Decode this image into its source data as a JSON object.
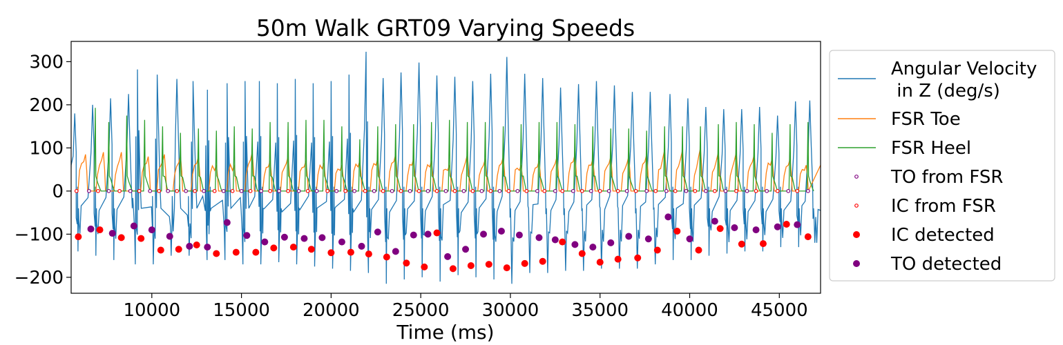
{
  "chart_data": {
    "type": "line",
    "title": "50m Walk GRT09 Varying Speeds",
    "xlabel": "Time (ms)",
    "ylabel": "",
    "xlim": [
      5500,
      47300
    ],
    "ylim": [
      -237,
      347
    ],
    "xticks": [
      10000,
      15000,
      20000,
      25000,
      30000,
      35000,
      40000,
      45000
    ],
    "xtick_labels": [
      "10000",
      "15000",
      "20000",
      "25000",
      "30000",
      "35000",
      "40000",
      "45000"
    ],
    "yticks": [
      300,
      200,
      100,
      0,
      -100,
      -200
    ],
    "ytick_labels": [
      "300",
      "200",
      "100",
      "0",
      "−100",
      "−200"
    ],
    "grid": false,
    "legend_position": "outside-right",
    "colors": {
      "angular_velocity": "#1f77b4",
      "fsr_toe": "#ff7f0e",
      "fsr_heel": "#2ca02c",
      "to": "#800080",
      "ic": "#ff0000"
    },
    "series": [
      {
        "key": "angular_velocity",
        "name": "Angular Velocity\n in Z (deg/s)",
        "kind": "line"
      },
      {
        "key": "fsr_toe",
        "name": "FSR Toe",
        "kind": "line"
      },
      {
        "key": "fsr_heel",
        "name": "FSR Heel",
        "kind": "line"
      },
      {
        "key": "to_fsr",
        "name": "TO from FSR",
        "kind": "hollow-marker"
      },
      {
        "key": "ic_fsr",
        "name": "IC from FSR",
        "kind": "hollow-marker"
      },
      {
        "key": "ic_detected",
        "name": "IC detected",
        "kind": "filled-marker"
      },
      {
        "key": "to_detected",
        "name": "TO detected",
        "kind": "filled-marker"
      }
    ],
    "gyro_peaks": [
      [
        5700,
        180
      ],
      [
        6700,
        200
      ],
      [
        7700,
        215
      ],
      [
        8700,
        225
      ],
      [
        9200,
        282
      ],
      [
        10300,
        270
      ],
      [
        11400,
        260
      ],
      [
        12300,
        255
      ],
      [
        13100,
        235
      ],
      [
        14200,
        250
      ],
      [
        15200,
        255
      ],
      [
        16000,
        255
      ],
      [
        17000,
        250
      ],
      [
        18000,
        260
      ],
      [
        19000,
        250
      ],
      [
        20000,
        255
      ],
      [
        21000,
        270
      ],
      [
        21950,
        323
      ],
      [
        22900,
        262
      ],
      [
        23900,
        275
      ],
      [
        24900,
        298
      ],
      [
        25900,
        268
      ],
      [
        26900,
        265
      ],
      [
        27900,
        255
      ],
      [
        28900,
        272
      ],
      [
        29800,
        311
      ],
      [
        30800,
        272
      ],
      [
        31800,
        262
      ],
      [
        32800,
        240
      ],
      [
        33800,
        248
      ],
      [
        34800,
        255
      ],
      [
        35800,
        245
      ],
      [
        36800,
        230
      ],
      [
        37800,
        230
      ],
      [
        38900,
        225
      ],
      [
        39900,
        215
      ],
      [
        40900,
        195
      ],
      [
        41900,
        190
      ],
      [
        42900,
        190
      ],
      [
        43900,
        195
      ],
      [
        44900,
        175
      ],
      [
        45900,
        208
      ],
      [
        46700,
        210
      ]
    ],
    "gyro_troughs": [
      [
        5900,
        -140
      ],
      [
        6900,
        -150
      ],
      [
        7900,
        -160
      ],
      [
        9100,
        -170
      ],
      [
        10100,
        -170
      ],
      [
        11100,
        -150
      ],
      [
        12100,
        -150
      ],
      [
        13100,
        -160
      ],
      [
        14100,
        -160
      ],
      [
        15100,
        -170
      ],
      [
        16100,
        -170
      ],
      [
        17100,
        -165
      ],
      [
        18100,
        -170
      ],
      [
        19100,
        -175
      ],
      [
        20100,
        -180
      ],
      [
        21100,
        -185
      ],
      [
        22100,
        -190
      ],
      [
        23100,
        -215
      ],
      [
        24100,
        -205
      ],
      [
        25100,
        -200
      ],
      [
        26100,
        -210
      ],
      [
        27100,
        -195
      ],
      [
        28100,
        -200
      ],
      [
        29100,
        -205
      ],
      [
        30100,
        -215
      ],
      [
        31100,
        -190
      ],
      [
        32100,
        -190
      ],
      [
        33100,
        -185
      ],
      [
        34100,
        -185
      ],
      [
        35100,
        -180
      ],
      [
        36100,
        -180
      ],
      [
        37100,
        -180
      ],
      [
        38100,
        -170
      ],
      [
        39100,
        -160
      ],
      [
        40100,
        -160
      ],
      [
        41100,
        -150
      ],
      [
        42100,
        -145
      ],
      [
        43100,
        -140
      ],
      [
        44100,
        -140
      ],
      [
        45100,
        -130
      ],
      [
        46100,
        -130
      ],
      [
        47000,
        -120
      ]
    ],
    "fsr_toe_peaks": [
      [
        6300,
        85
      ],
      [
        7300,
        90
      ],
      [
        8300,
        90
      ],
      [
        9800,
        80
      ],
      [
        10700,
        85
      ],
      [
        11600,
        82
      ],
      [
        12600,
        80
      ],
      [
        13600,
        60
      ],
      [
        14600,
        60
      ],
      [
        15600,
        90
      ],
      [
        16600,
        70
      ],
      [
        17600,
        80
      ],
      [
        18600,
        70
      ],
      [
        19600,
        65
      ],
      [
        20600,
        60
      ],
      [
        21600,
        70
      ],
      [
        22600,
        75
      ],
      [
        23600,
        85
      ],
      [
        24600,
        75
      ],
      [
        25600,
        70
      ],
      [
        26600,
        60
      ],
      [
        27600,
        85
      ],
      [
        28600,
        75
      ],
      [
        29600,
        80
      ],
      [
        30600,
        60
      ],
      [
        31600,
        70
      ],
      [
        32600,
        80
      ],
      [
        33600,
        85
      ],
      [
        34600,
        75
      ],
      [
        35600,
        80
      ],
      [
        36600,
        80
      ],
      [
        37600,
        85
      ],
      [
        38600,
        95
      ],
      [
        39600,
        95
      ],
      [
        40600,
        100
      ],
      [
        41600,
        90
      ],
      [
        42600,
        90
      ],
      [
        43600,
        85
      ],
      [
        44600,
        75
      ],
      [
        45600,
        75
      ],
      [
        46500,
        60
      ]
    ],
    "fsr_heel_peaks": [
      [
        6850,
        193
      ],
      [
        7600,
        160
      ],
      [
        8600,
        175
      ],
      [
        9600,
        165
      ],
      [
        10600,
        150
      ],
      [
        11600,
        135
      ],
      [
        12600,
        145
      ],
      [
        13600,
        140
      ],
      [
        14600,
        150
      ],
      [
        15600,
        145
      ],
      [
        16600,
        160
      ],
      [
        17600,
        160
      ],
      [
        18600,
        165
      ],
      [
        19600,
        165
      ],
      [
        20600,
        150
      ],
      [
        21600,
        120
      ],
      [
        22600,
        150
      ],
      [
        23600,
        155
      ],
      [
        24600,
        155
      ],
      [
        25600,
        160
      ],
      [
        26600,
        165
      ],
      [
        27600,
        160
      ],
      [
        28600,
        160
      ],
      [
        29600,
        150
      ],
      [
        30600,
        155
      ],
      [
        31600,
        160
      ],
      [
        32600,
        160
      ],
      [
        33600,
        155
      ],
      [
        34600,
        150
      ],
      [
        35600,
        145
      ],
      [
        36600,
        145
      ],
      [
        37600,
        140
      ],
      [
        38600,
        150
      ],
      [
        39600,
        150
      ],
      [
        40600,
        150
      ],
      [
        41600,
        155
      ],
      [
        42600,
        160
      ],
      [
        43600,
        155
      ],
      [
        44600,
        135
      ],
      [
        45600,
        155
      ],
      [
        46600,
        160
      ]
    ],
    "ic_detected": [
      [
        5900,
        -106
      ],
      [
        7100,
        -90
      ],
      [
        8300,
        -108
      ],
      [
        9400,
        -110
      ],
      [
        10500,
        -137
      ],
      [
        11500,
        -135
      ],
      [
        12500,
        -125
      ],
      [
        13600,
        -145
      ],
      [
        14700,
        -142
      ],
      [
        15800,
        -142
      ],
      [
        16800,
        -132
      ],
      [
        17900,
        -130
      ],
      [
        18900,
        -135
      ],
      [
        20000,
        -143
      ],
      [
        21100,
        -142
      ],
      [
        22100,
        -146
      ],
      [
        23100,
        -153
      ],
      [
        24200,
        -167
      ],
      [
        25200,
        -176
      ],
      [
        25900,
        -97
      ],
      [
        26800,
        -180
      ],
      [
        27800,
        -173
      ],
      [
        28800,
        -170
      ],
      [
        29800,
        -178
      ],
      [
        30800,
        -168
      ],
      [
        31800,
        -163
      ],
      [
        32900,
        -118
      ],
      [
        34000,
        -145
      ],
      [
        35000,
        -165
      ],
      [
        36000,
        -158
      ],
      [
        37100,
        -155
      ],
      [
        38200,
        -137
      ],
      [
        39300,
        -93
      ],
      [
        40500,
        -137
      ],
      [
        41700,
        -87
      ],
      [
        42900,
        -123
      ],
      [
        44100,
        -122
      ],
      [
        45400,
        -77
      ],
      [
        46600,
        -106
      ]
    ],
    "to_detected": [
      [
        6600,
        -88
      ],
      [
        7800,
        -98
      ],
      [
        9000,
        -81
      ],
      [
        10000,
        -90
      ],
      [
        11000,
        -105
      ],
      [
        12100,
        -128
      ],
      [
        13100,
        -130
      ],
      [
        14200,
        -73
      ],
      [
        15300,
        -103
      ],
      [
        16300,
        -118
      ],
      [
        17400,
        -107
      ],
      [
        18500,
        -110
      ],
      [
        19500,
        -108
      ],
      [
        20600,
        -118
      ],
      [
        21700,
        -128
      ],
      [
        22600,
        -95
      ],
      [
        23600,
        -140
      ],
      [
        24600,
        -102
      ],
      [
        25400,
        -100
      ],
      [
        26500,
        -152
      ],
      [
        27500,
        -135
      ],
      [
        28500,
        -100
      ],
      [
        29500,
        -93
      ],
      [
        30500,
        -102
      ],
      [
        31600,
        -108
      ],
      [
        32500,
        -113
      ],
      [
        33600,
        -124
      ],
      [
        34600,
        -130
      ],
      [
        35600,
        -120
      ],
      [
        36600,
        -105
      ],
      [
        37700,
        -111
      ],
      [
        38800,
        -60
      ],
      [
        40000,
        -111
      ],
      [
        41400,
        -70
      ],
      [
        42500,
        -85
      ],
      [
        43700,
        -90
      ],
      [
        44900,
        -83
      ],
      [
        46000,
        -78
      ]
    ],
    "to_from_fsr_x": [
      6500,
      7600,
      8800,
      9900,
      10900,
      11900,
      12900,
      14000,
      15000,
      16100,
      17100,
      18200,
      19200,
      20300,
      21300,
      22400,
      23400,
      24400,
      25400,
      26400,
      27400,
      28400,
      29400,
      30400,
      31500,
      32500,
      33500,
      34500,
      35500,
      36500,
      37600,
      38700,
      39800,
      40900,
      42000,
      43200,
      44300,
      45500,
      46600
    ],
    "ic_from_fsr_x": [
      5800,
      7000,
      8200,
      9300,
      10400,
      11400,
      12400,
      13500,
      14500,
      15500,
      16600,
      17600,
      18700,
      19800,
      20800,
      21900,
      22900,
      23900,
      24900,
      25900,
      26900,
      27900,
      28900,
      29900,
      30900,
      31900,
      32900,
      34000,
      35000,
      36000,
      37000,
      38100,
      39200,
      40300,
      41400,
      42600,
      43700,
      44900,
      46000
    ]
  }
}
